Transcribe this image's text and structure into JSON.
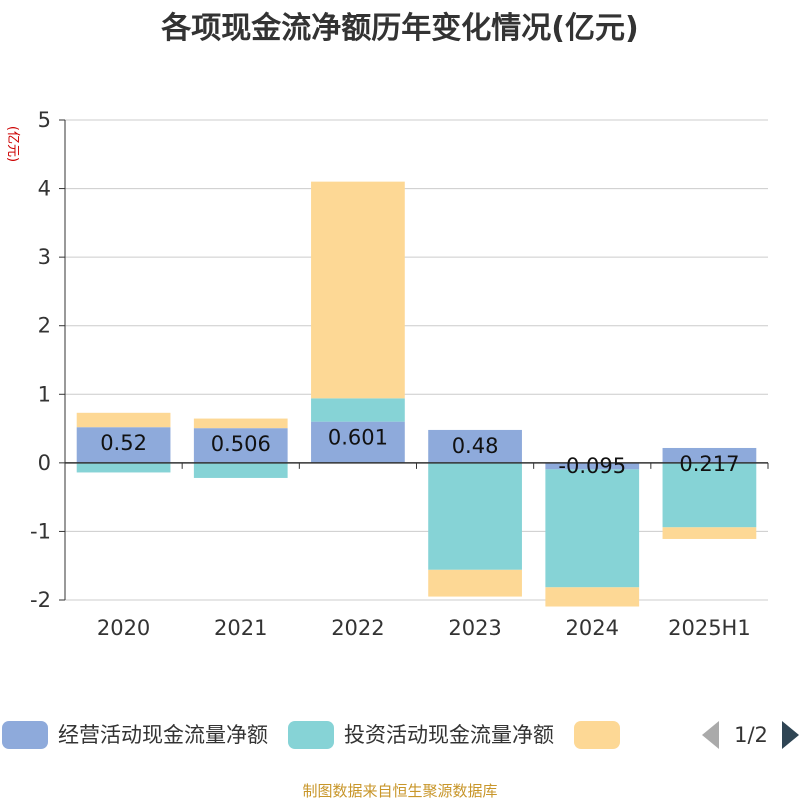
{
  "chart_data": {
    "type": "bar",
    "stacked": true,
    "title": "各项现金流净额历年变化情况(亿元)",
    "ylabel": "(亿元)",
    "ylim": [
      -2,
      5
    ],
    "yticks": [
      5,
      4,
      3,
      2,
      1,
      0,
      -1,
      -2
    ],
    "grid": true,
    "categories": [
      "2020",
      "2021",
      "2022",
      "2023",
      "2024",
      "2025H1"
    ],
    "series": [
      {
        "name": "经营活动现金流量净额",
        "color": "#8eaadb",
        "values": [
          0.52,
          0.506,
          0.601,
          0.48,
          -0.095,
          0.217
        ]
      },
      {
        "name": "投资活动现金流量净额",
        "color": "#86d3d6",
        "values": [
          -0.14,
          -0.22,
          0.34,
          -1.56,
          -1.72,
          -0.94
        ]
      },
      {
        "color": "#fdd895",
        "values": [
          0.21,
          0.14,
          3.16,
          -0.39,
          -0.28,
          -0.17
        ]
      }
    ],
    "data_labels": [
      "0.52",
      "0.506",
      "0.601",
      "0.48",
      "-0.095",
      "0.217"
    ],
    "legend": {
      "position": "bottom",
      "page": "1/2"
    }
  },
  "source_note": "制图数据来自恒生聚源数据库"
}
